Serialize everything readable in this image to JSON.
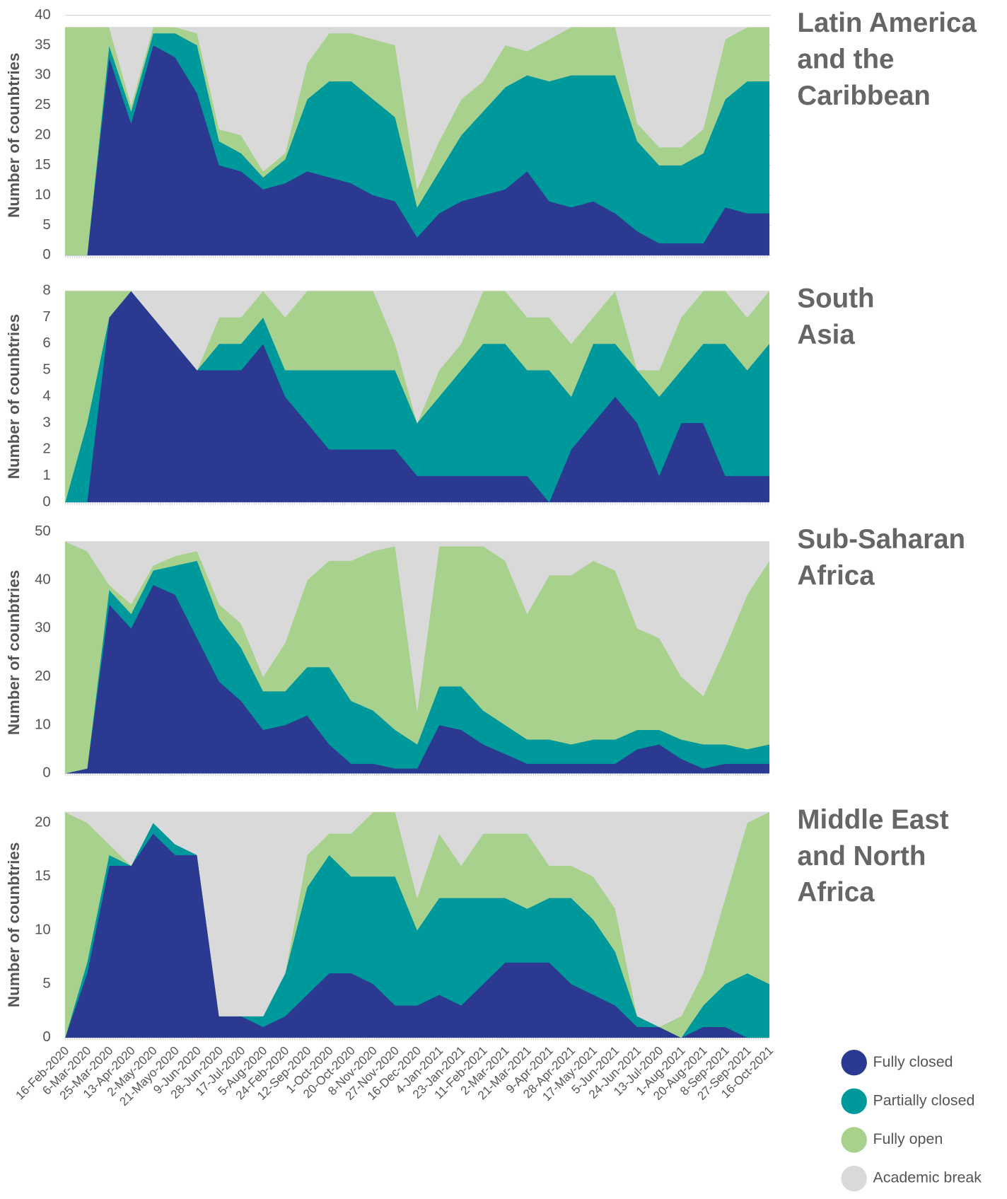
{
  "chart_data": [
    {
      "type": "stacked-area",
      "title": [
        "Latin America",
        "and the",
        "Caribbean"
      ],
      "y_label": "Number of counbtries",
      "ylim": [
        0,
        40
      ],
      "yticks": [
        0,
        5,
        10,
        15,
        20,
        25,
        30,
        35,
        40
      ],
      "grid": true,
      "series": [
        {
          "values": [
            0,
            0,
            33,
            22,
            35,
            33,
            27,
            15,
            14,
            11,
            12,
            14,
            13,
            12,
            10,
            9,
            3,
            7,
            9,
            10,
            11,
            14,
            9,
            8,
            9,
            7,
            4,
            2,
            2,
            2,
            8,
            7,
            7
          ]
        },
        {
          "values": [
            0,
            0,
            2,
            2,
            2,
            4,
            8,
            4,
            3,
            2,
            4,
            12,
            16,
            17,
            16,
            14,
            5,
            7,
            11,
            14,
            17,
            16,
            20,
            22,
            21,
            23,
            15,
            13,
            13,
            15,
            18,
            22,
            22
          ]
        },
        {
          "values": [
            38,
            38,
            3,
            1,
            1,
            1,
            2,
            2,
            3,
            1,
            1,
            6,
            8,
            8,
            10,
            12,
            3,
            5,
            6,
            5,
            7,
            4,
            7,
            8,
            8,
            8,
            3,
            3,
            3,
            4,
            10,
            9,
            9
          ]
        },
        {
          "values": [
            0,
            0,
            0,
            13,
            0,
            0,
            1,
            17,
            18,
            24,
            21,
            6,
            1,
            1,
            2,
            3,
            27,
            19,
            12,
            9,
            3,
            4,
            2,
            0,
            0,
            0,
            16,
            20,
            20,
            17,
            2,
            0,
            0
          ]
        }
      ]
    },
    {
      "type": "stacked-area",
      "title": [
        "South",
        "Asia"
      ],
      "y_label": "Number of counbtries",
      "ylim": [
        0,
        8
      ],
      "yticks": [
        0,
        1,
        2,
        3,
        4,
        5,
        6,
        7,
        8
      ],
      "grid": false,
      "series": [
        {
          "values": [
            0,
            0,
            7,
            8,
            7,
            6,
            5,
            5,
            5,
            6,
            4,
            3,
            2,
            2,
            2,
            2,
            1,
            1,
            1,
            1,
            1,
            1,
            0,
            2,
            3,
            4,
            3,
            1,
            3,
            3,
            1,
            1,
            1
          ]
        },
        {
          "values": [
            0,
            3,
            0,
            0,
            0,
            0,
            0,
            1,
            1,
            1,
            1,
            2,
            3,
            3,
            3,
            3,
            2,
            3,
            4,
            5,
            5,
            4,
            5,
            2,
            3,
            2,
            2,
            3,
            2,
            3,
            5,
            4,
            5
          ]
        },
        {
          "values": [
            8,
            5,
            1,
            0,
            0,
            0,
            0,
            1,
            1,
            1,
            2,
            3,
            3,
            3,
            3,
            1,
            0,
            1,
            1,
            2,
            2,
            2,
            2,
            2,
            1,
            2,
            0,
            1,
            2,
            2,
            2,
            2,
            2
          ]
        },
        {
          "values": [
            0,
            0,
            0,
            0,
            1,
            2,
            3,
            1,
            1,
            0,
            1,
            0,
            0,
            0,
            0,
            2,
            5,
            3,
            2,
            0,
            0,
            1,
            1,
            2,
            1,
            0,
            3,
            3,
            1,
            0,
            0,
            1,
            0
          ]
        }
      ]
    },
    {
      "type": "stacked-area",
      "title": [
        "Sub-Saharan",
        "Africa"
      ],
      "y_label": "Number of counbtries",
      "ylim": [
        0,
        50
      ],
      "yticks": [
        0,
        10,
        20,
        30,
        40,
        50
      ],
      "grid": false,
      "series": [
        {
          "values": [
            0,
            1,
            35,
            30,
            39,
            37,
            28,
            19,
            15,
            9,
            10,
            12,
            6,
            2,
            2,
            1,
            1,
            10,
            9,
            6,
            4,
            2,
            2,
            2,
            2,
            2,
            5,
            6,
            3,
            1,
            2,
            2,
            2
          ]
        },
        {
          "values": [
            0,
            0,
            3,
            3,
            3,
            6,
            16,
            13,
            11,
            8,
            7,
            10,
            16,
            13,
            11,
            8,
            5,
            8,
            9,
            7,
            6,
            5,
            5,
            4,
            5,
            5,
            4,
            3,
            4,
            5,
            4,
            3,
            4
          ]
        },
        {
          "values": [
            48,
            45,
            1,
            2,
            1,
            2,
            2,
            3,
            5,
            3,
            10,
            18,
            22,
            29,
            33,
            38,
            7,
            29,
            29,
            34,
            34,
            26,
            34,
            35,
            37,
            35,
            21,
            19,
            13,
            10,
            20,
            32,
            38
          ]
        },
        {
          "values": [
            0,
            2,
            9,
            13,
            5,
            3,
            2,
            13,
            17,
            28,
            21,
            8,
            4,
            4,
            2,
            1,
            35,
            1,
            1,
            1,
            4,
            15,
            7,
            7,
            4,
            6,
            18,
            20,
            28,
            32,
            22,
            11,
            4
          ]
        }
      ]
    },
    {
      "type": "stacked-area",
      "title": [
        "Middle East",
        "and North",
        "Africa"
      ],
      "y_label": "Number of counbtries",
      "ylim": [
        0,
        21
      ],
      "yticks": [
        0,
        5,
        10,
        15,
        20
      ],
      "grid": false,
      "categories": [
        "16-Feb-2020",
        "6-Mar-2020",
        "25-Mar-2020",
        "13-Apr-2020",
        "2-May-2020",
        "21-Mayo-2020",
        "9-Jun-2020",
        "28-Jun-2020",
        "17-Jul-2020",
        "5-Aug-2020",
        "24-Feb-2020",
        "12-Sep-2020",
        "1-Oct-2020",
        "20-Oct-2020",
        "8-Nov-2020",
        "27-Nov-2020",
        "16-Dec-2020",
        "4-Jan-2021",
        "23-Jan-2021",
        "11-Feb-2021",
        "2-Mar-2021",
        "21-Mar-2021",
        "9-Apr-2021",
        "28-Apr-2021",
        "17-May-2021",
        "5-Jun-2021",
        "24-Jun-2021",
        "13-Jul-2020",
        "1-Aug-2021",
        "20-Aug-2021",
        "8-Sep-2021",
        "27-Sep-2021",
        "16-Oct-2021"
      ],
      "series": [
        {
          "name": "Fully closed",
          "color": "#2b3990",
          "values": [
            0,
            6,
            16,
            16,
            19,
            17,
            17,
            2,
            2,
            1,
            2,
            4,
            6,
            6,
            5,
            3,
            3,
            4,
            3,
            5,
            7,
            7,
            7,
            5,
            4,
            3,
            1,
            1,
            0,
            1,
            1,
            0,
            0
          ]
        },
        {
          "name": "Partially closed",
          "color": "#00999b",
          "values": [
            0,
            1,
            1,
            0,
            1,
            1,
            0,
            0,
            0,
            1,
            4,
            10,
            11,
            9,
            10,
            12,
            7,
            9,
            10,
            8,
            6,
            5,
            6,
            8,
            7,
            5,
            1,
            0,
            0,
            2,
            4,
            6,
            5
          ]
        },
        {
          "name": "Fully open",
          "color": "#a9d18e",
          "values": [
            21,
            13,
            1,
            0,
            0,
            0,
            0,
            0,
            0,
            0,
            0,
            3,
            2,
            4,
            6,
            6,
            3,
            6,
            3,
            6,
            6,
            7,
            3,
            3,
            4,
            4,
            0,
            0,
            2,
            3,
            8,
            14,
            16
          ]
        },
        {
          "name": "Academic break",
          "color": "#d9d9d9",
          "values": [
            0,
            1,
            3,
            5,
            1,
            3,
            4,
            19,
            19,
            19,
            15,
            4,
            2,
            2,
            0,
            0,
            8,
            2,
            5,
            2,
            2,
            2,
            5,
            5,
            6,
            9,
            19,
            20,
            19,
            15,
            8,
            1,
            0
          ]
        }
      ]
    }
  ]
}
